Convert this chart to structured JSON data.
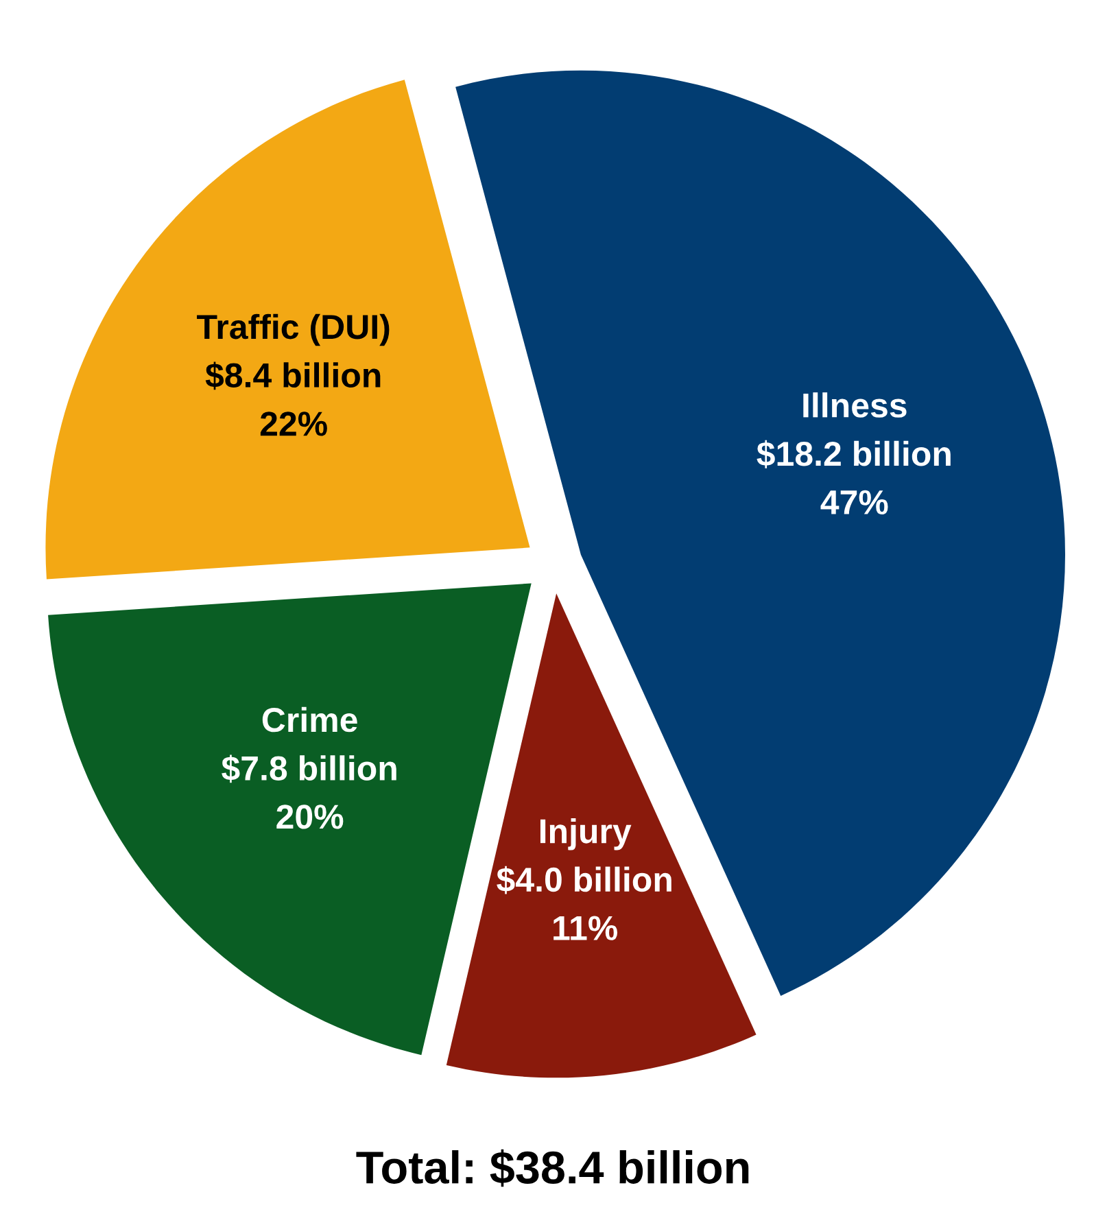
{
  "chart_data": {
    "type": "pie",
    "categories": [
      "Illness",
      "Injury",
      "Crime",
      "Traffic (DUI)"
    ],
    "values": [
      18.2,
      4.0,
      7.8,
      8.4
    ],
    "colors": [
      "#023d72",
      "#8a1a0c",
      "#0a5e24",
      "#f3a814"
    ],
    "value_labels": [
      "$18.2 billion",
      "$4.0 billion",
      "$7.8 billion",
      "$8.4 billion"
    ],
    "annotations": [
      {
        "text": "47%",
        "x": "Illness"
      },
      {
        "text": "11%",
        "x": "Injury"
      },
      {
        "text": "20%",
        "x": "Crime"
      },
      {
        "text": "22%",
        "x": "Traffic (DUI)"
      },
      "Total: $38.4 billion"
    ]
  }
}
